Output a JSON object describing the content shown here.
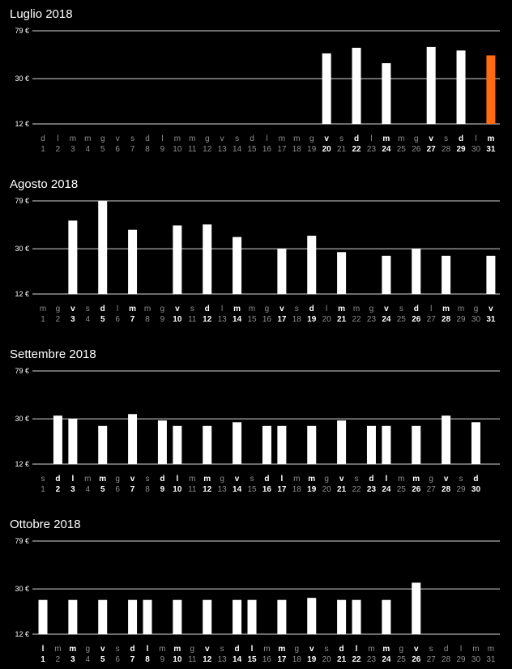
{
  "colors": {
    "background": "#000000",
    "bar": "#ffffff",
    "highlight": "#ff6a13",
    "gridline": "#d8d8d8",
    "dim_text": "#8f8f8f",
    "bright_text": "#ffffff"
  },
  "y_axis": {
    "scale": "log",
    "ticks": [
      {
        "value": 79,
        "label": "79 €"
      },
      {
        "value": 30,
        "label": "30 €"
      },
      {
        "value": 12,
        "label": "12 €"
      }
    ]
  },
  "chart_data": [
    {
      "type": "bar",
      "title": "Luglio 2018",
      "ylim": [
        12,
        79
      ],
      "weekdays": [
        "d",
        "l",
        "m",
        "m",
        "g",
        "v",
        "s",
        "d",
        "l",
        "m",
        "m",
        "g",
        "v",
        "s",
        "d",
        "l",
        "m",
        "m",
        "g",
        "v",
        "s",
        "d",
        "l",
        "m",
        "m",
        "g",
        "v",
        "s",
        "d",
        "l",
        "m"
      ],
      "categories": [
        "1",
        "2",
        "3",
        "4",
        "5",
        "6",
        "7",
        "8",
        "9",
        "10",
        "11",
        "12",
        "13",
        "14",
        "15",
        "16",
        "17",
        "18",
        "19",
        "20",
        "21",
        "22",
        "23",
        "24",
        "25",
        "26",
        "27",
        "28",
        "29",
        "30",
        "31"
      ],
      "values": [
        null,
        null,
        null,
        null,
        null,
        null,
        null,
        null,
        null,
        null,
        null,
        null,
        null,
        null,
        null,
        null,
        null,
        null,
        null,
        50,
        null,
        56,
        null,
        41,
        null,
        null,
        57,
        null,
        53,
        null,
        48
      ],
      "highlight_day": 31
    },
    {
      "type": "bar",
      "title": "Agosto 2018",
      "ylim": [
        12,
        79
      ],
      "weekdays": [
        "m",
        "g",
        "v",
        "s",
        "d",
        "l",
        "m",
        "m",
        "g",
        "v",
        "s",
        "d",
        "l",
        "m",
        "m",
        "g",
        "v",
        "s",
        "d",
        "l",
        "m",
        "m",
        "g",
        "v",
        "s",
        "d",
        "l",
        "m",
        "m",
        "g",
        "v"
      ],
      "categories": [
        "1",
        "2",
        "3",
        "4",
        "5",
        "6",
        "7",
        "8",
        "9",
        "10",
        "11",
        "12",
        "13",
        "14",
        "15",
        "16",
        "17",
        "18",
        "19",
        "20",
        "21",
        "22",
        "23",
        "24",
        "25",
        "26",
        "27",
        "28",
        "29",
        "30",
        "31"
      ],
      "values": [
        null,
        null,
        53,
        null,
        79,
        null,
        44,
        null,
        null,
        48,
        null,
        49,
        null,
        38,
        null,
        null,
        30,
        null,
        39,
        null,
        28,
        null,
        null,
        26,
        null,
        30,
        null,
        26,
        null,
        null,
        26
      ],
      "highlight_day": null
    },
    {
      "type": "bar",
      "title": "Settembre 2018",
      "ylim": [
        12,
        79
      ],
      "weekdays": [
        "s",
        "d",
        "l",
        "m",
        "m",
        "g",
        "v",
        "s",
        "d",
        "l",
        "m",
        "m",
        "g",
        "v",
        "s",
        "d",
        "l",
        "m",
        "m",
        "g",
        "v",
        "s",
        "d",
        "l",
        "m",
        "m",
        "g",
        "v",
        "s",
        "d"
      ],
      "categories": [
        "1",
        "2",
        "3",
        "4",
        "5",
        "6",
        "7",
        "8",
        "9",
        "10",
        "11",
        "12",
        "13",
        "14",
        "15",
        "16",
        "17",
        "18",
        "19",
        "20",
        "21",
        "22",
        "23",
        "24",
        "25",
        "26",
        "27",
        "28",
        "29",
        "30"
      ],
      "values": [
        null,
        32,
        30,
        null,
        26,
        null,
        33,
        null,
        29,
        26,
        null,
        26,
        null,
        28,
        null,
        26,
        26,
        null,
        26,
        null,
        29,
        null,
        26,
        26,
        null,
        26,
        null,
        32,
        null,
        28
      ],
      "highlight_day": null
    },
    {
      "type": "bar",
      "title": "Ottobre 2018",
      "ylim": [
        12,
        79
      ],
      "weekdays": [
        "l",
        "m",
        "m",
        "g",
        "v",
        "s",
        "d",
        "l",
        "m",
        "m",
        "g",
        "v",
        "s",
        "d",
        "l",
        "m",
        "m",
        "g",
        "v",
        "s",
        "d",
        "l",
        "m",
        "m",
        "g",
        "v",
        "s",
        "d",
        "l",
        "m",
        "m"
      ],
      "categories": [
        "1",
        "2",
        "3",
        "4",
        "5",
        "6",
        "7",
        "8",
        "9",
        "10",
        "11",
        "12",
        "13",
        "14",
        "15",
        "16",
        "17",
        "18",
        "19",
        "20",
        "21",
        "22",
        "23",
        "24",
        "25",
        "26",
        "27",
        "28",
        "29",
        "30",
        "31"
      ],
      "values": [
        24,
        null,
        24,
        null,
        24,
        null,
        24,
        24,
        null,
        24,
        null,
        24,
        null,
        24,
        24,
        null,
        24,
        null,
        25,
        null,
        24,
        24,
        null,
        24,
        null,
        34,
        null,
        null,
        null,
        null,
        null
      ],
      "highlight_day": null
    }
  ]
}
